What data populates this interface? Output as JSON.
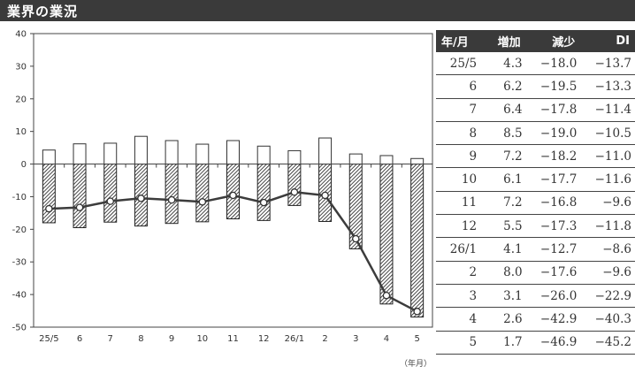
{
  "title": "業界の業況",
  "unit_label": "（年月）",
  "table": {
    "headers": [
      "年/月",
      "増加",
      "減少",
      "DI"
    ],
    "rows": [
      [
        "25/5",
        "4.3",
        "−18.0",
        "−13.7"
      ],
      [
        "6",
        "6.2",
        "−19.5",
        "−13.3"
      ],
      [
        "7",
        "6.4",
        "−17.8",
        "−11.4"
      ],
      [
        "8",
        "8.5",
        "−19.0",
        "−10.5"
      ],
      [
        "9",
        "7.2",
        "−18.2",
        "−11.0"
      ],
      [
        "10",
        "6.1",
        "−17.7",
        "−11.6"
      ],
      [
        "11",
        "7.2",
        "−16.8",
        "−9.6"
      ],
      [
        "12",
        "5.5",
        "−17.3",
        "−11.8"
      ],
      [
        "26/1",
        "4.1",
        "−12.7",
        "−8.6"
      ],
      [
        "2",
        "8.0",
        "−17.6",
        "−9.6"
      ],
      [
        "3",
        "3.1",
        "−26.0",
        "−22.9"
      ],
      [
        "4",
        "2.6",
        "−42.9",
        "−40.3"
      ],
      [
        "5",
        "1.7",
        "−46.9",
        "−45.2"
      ]
    ]
  },
  "chart_data": {
    "type": "bar",
    "categories": [
      "25/5",
      "6",
      "7",
      "8",
      "9",
      "10",
      "11",
      "12",
      "26/1",
      "2",
      "3",
      "4",
      "5"
    ],
    "series": [
      {
        "name": "増加",
        "type": "bar",
        "values": [
          4.3,
          6.2,
          6.4,
          8.5,
          7.2,
          6.1,
          7.2,
          5.5,
          4.1,
          8.0,
          3.1,
          2.6,
          1.7
        ]
      },
      {
        "name": "減少",
        "type": "bar",
        "values": [
          -18.0,
          -19.5,
          -17.8,
          -19.0,
          -18.2,
          -17.7,
          -16.8,
          -17.3,
          -12.7,
          -17.6,
          -26.0,
          -42.9,
          -46.9
        ]
      },
      {
        "name": "DI",
        "type": "line",
        "values": [
          -13.7,
          -13.3,
          -11.4,
          -10.5,
          -11.0,
          -11.6,
          -9.6,
          -11.8,
          -8.6,
          -9.6,
          -22.9,
          -40.3,
          -45.2
        ]
      }
    ],
    "ylim": [
      -50,
      40
    ],
    "yticks": [
      40,
      30,
      20,
      10,
      0,
      -10,
      -20,
      -30,
      -40,
      -50
    ],
    "grid": false,
    "colors": {
      "frame": "#444444",
      "line": "#3c3c3c",
      "hatch": "#1a1a1a"
    }
  }
}
